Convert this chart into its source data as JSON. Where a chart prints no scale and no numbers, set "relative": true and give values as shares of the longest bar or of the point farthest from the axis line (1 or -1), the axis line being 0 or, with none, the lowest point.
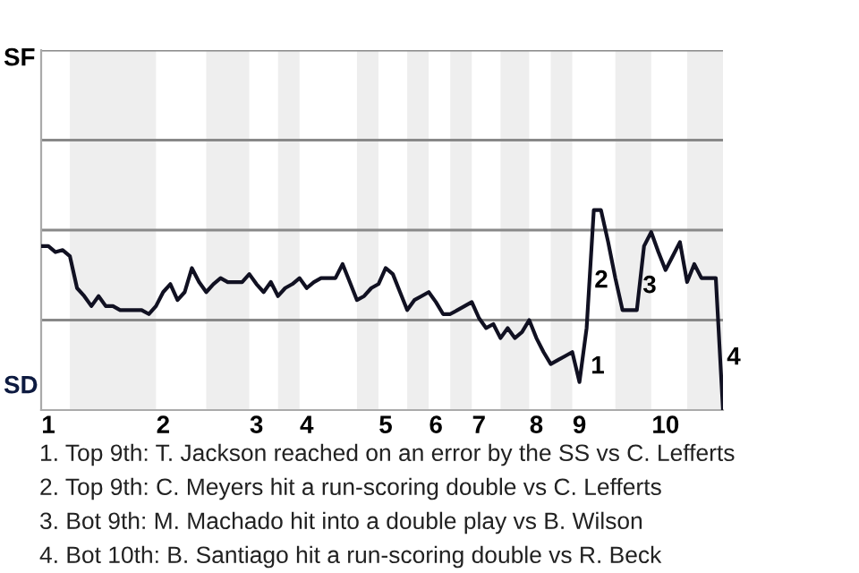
{
  "chart_data": {
    "type": "line",
    "relative": true,
    "categories": [
      null,
      "1",
      null,
      null,
      null,
      null,
      null,
      null,
      null,
      null,
      null,
      null,
      null,
      null,
      null,
      null,
      null,
      "2",
      null,
      null,
      null,
      null,
      null,
      null,
      null,
      null,
      null,
      null,
      null,
      null,
      "3",
      null,
      null,
      null,
      null,
      null,
      null,
      "4",
      null,
      null,
      null,
      null,
      null,
      null,
      null,
      null,
      null,
      null,
      "5",
      null,
      null,
      null,
      null,
      null,
      null,
      "6",
      null,
      null,
      null,
      null,
      null,
      "7",
      null,
      null,
      null,
      null,
      null,
      null,
      null,
      "8",
      null,
      null,
      null,
      null,
      null,
      "9",
      null,
      null,
      null,
      null,
      null,
      null,
      null,
      null,
      null,
      null,
      null,
      "10",
      null,
      null,
      null,
      null,
      null,
      null,
      null,
      null
    ],
    "series": [
      {
        "color": "#111122",
        "values": [
          0.82,
          0.82,
          0.79,
          0.8,
          0.77,
          0.61,
          0.57,
          0.52,
          0.57,
          0.52,
          0.52,
          0.5,
          0.5,
          0.5,
          0.5,
          0.48,
          0.52,
          0.59,
          0.63,
          0.55,
          0.59,
          0.71,
          0.64,
          0.59,
          0.63,
          0.66,
          0.64,
          0.64,
          0.64,
          0.68,
          0.63,
          0.59,
          0.64,
          0.57,
          0.61,
          0.63,
          0.66,
          0.61,
          0.64,
          0.66,
          0.66,
          0.66,
          0.73,
          0.64,
          0.55,
          0.57,
          0.61,
          0.63,
          0.71,
          0.68,
          0.59,
          0.5,
          0.55,
          0.57,
          0.59,
          0.54,
          0.48,
          0.48,
          0.5,
          0.52,
          0.54,
          0.46,
          0.41,
          0.43,
          0.36,
          0.41,
          0.36,
          0.39,
          0.45,
          0.36,
          0.29,
          0.23,
          0.25,
          0.27,
          0.29,
          0.14,
          0.41,
          1,
          1,
          0.84,
          0.66,
          0.5,
          0.5,
          0.5,
          0.82,
          0.89,
          0.79,
          0.7,
          0.77,
          0.84,
          0.64,
          0.73,
          0.66,
          0.66,
          0.66,
          0
        ]
      }
    ],
    "ref_lines": [
      {
        "axis": "y",
        "value": 0.45,
        "color": "#888888",
        "line_style": "solid"
      },
      {
        "axis": "y",
        "value": 0.9,
        "color": "#888888",
        "line_style": "solid"
      },
      {
        "axis": "y",
        "value": 1.35,
        "color": "#888888",
        "line_style": "solid"
      },
      {
        "axis": "y",
        "value": 1.8,
        "color": "#888888",
        "line_style": "solid"
      }
    ],
    "annotations": [
      "SF",
      "SD",
      "1",
      "2",
      "3",
      "4",
      "1. Top 9th: T. Jackson reached on an error by the SS vs C. Lefferts",
      "2. Top 9th: C. Meyers hit a run-scoring double vs C. Lefferts",
      "3. Bot 9th: M. Machado hit into a double play vs B. Wilson",
      "4. Bot 10th: B. Santiago hit a run-scoring double vs R. Beck"
    ],
    "legend": false,
    "marker": "none",
    "line_style": "solid"
  }
}
